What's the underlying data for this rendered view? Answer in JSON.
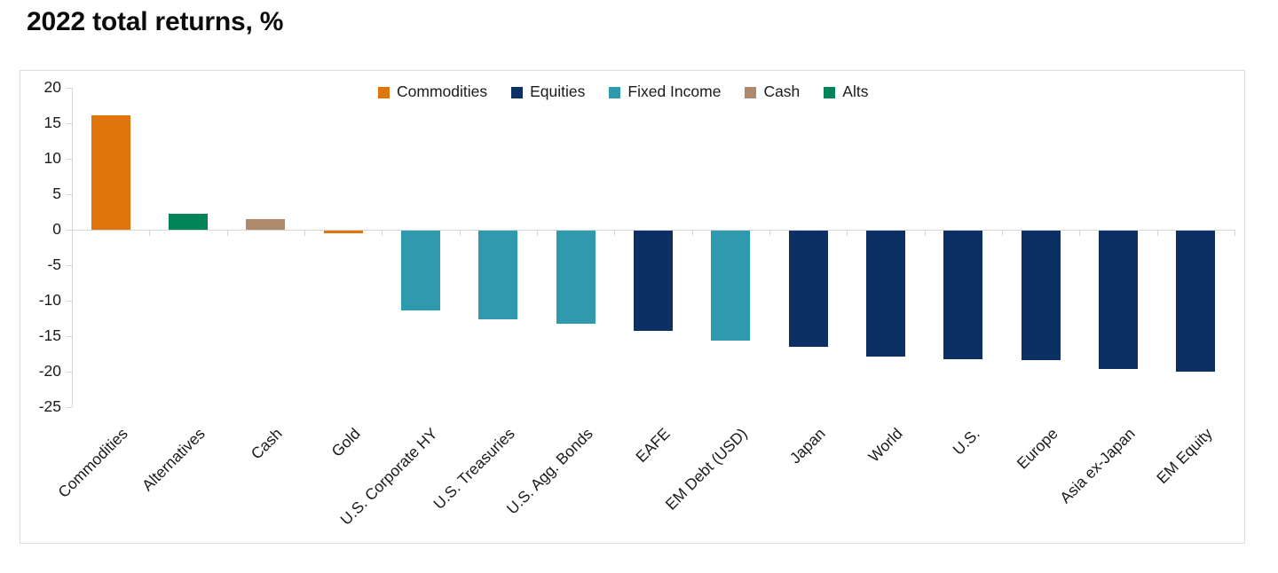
{
  "title": "2022 total returns, %",
  "colors": {
    "axis_line": "#d7d7d7",
    "border": "#dcdcdc",
    "text": "#1a1a1a",
    "commodities": "#e0750c",
    "equities": "#0c3064",
    "fixed_income": "#2f9aae",
    "cash": "#ae8a6d",
    "alts": "#018257"
  },
  "chart_data": {
    "type": "bar",
    "title": "2022 total returns, %",
    "xlabel": "",
    "ylabel": "",
    "ylim": [
      -25,
      20
    ],
    "yticks": [
      20,
      15,
      10,
      5,
      0,
      -5,
      -10,
      -15,
      -20,
      -25
    ],
    "grid": false,
    "legend_position": "top-center",
    "legend": [
      {
        "label": "Commodities",
        "color": "#e0750c"
      },
      {
        "label": "Equities",
        "color": "#0c3064"
      },
      {
        "label": "Fixed Income",
        "color": "#2f9aae"
      },
      {
        "label": "Cash",
        "color": "#ae8a6d"
      },
      {
        "label": "Alts",
        "color": "#018257"
      }
    ],
    "categories": [
      "Commodities",
      "Alternatives",
      "Cash",
      "Gold",
      "U.S. Corporate HY",
      "U.S. Treasuries",
      "U.S. Agg. Bonds",
      "EAFE",
      "EM Debt (USD)",
      "Japan",
      "World",
      "U.S.",
      "Europe",
      "Asia ex-Japan",
      "EM Equity"
    ],
    "values": [
      16.1,
      2.3,
      1.5,
      -0.4,
      -11.2,
      -12.5,
      -13.1,
      -14.1,
      -15.5,
      -16.4,
      -17.8,
      -18.1,
      -18.2,
      -19.5,
      -19.9
    ],
    "groups": [
      "Commodities",
      "Alts",
      "Cash",
      "Commodities",
      "Fixed Income",
      "Fixed Income",
      "Fixed Income",
      "Equities",
      "Fixed Income",
      "Equities",
      "Equities",
      "Equities",
      "Equities",
      "Equities",
      "Equities"
    ]
  }
}
